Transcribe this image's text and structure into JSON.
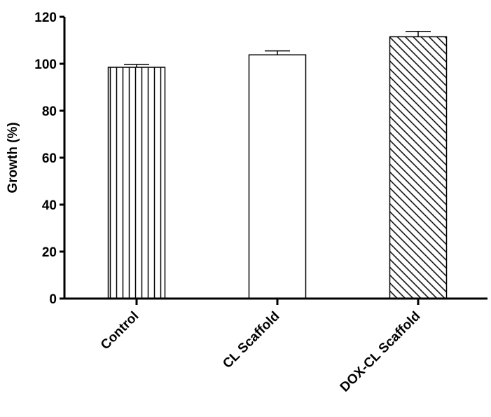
{
  "chart_data": {
    "type": "bar",
    "title": "",
    "xlabel": "",
    "ylabel": "Growth (%)",
    "categories": [
      "Control",
      "CL Scaffold",
      "DOX-CL Scaffold"
    ],
    "values": [
      98.5,
      103.8,
      111.5
    ],
    "errors": [
      1.2,
      1.7,
      2.3
    ],
    "patterns": [
      "vertical-lines",
      "none",
      "diagonal-lines"
    ],
    "ylim": [
      0,
      120
    ],
    "yticks": [
      0,
      20,
      40,
      60,
      80,
      100,
      120
    ],
    "grid": false,
    "colors": {
      "bar_stroke": "#000000",
      "bar_fill": "#ffffff",
      "pattern": "#000000"
    }
  }
}
